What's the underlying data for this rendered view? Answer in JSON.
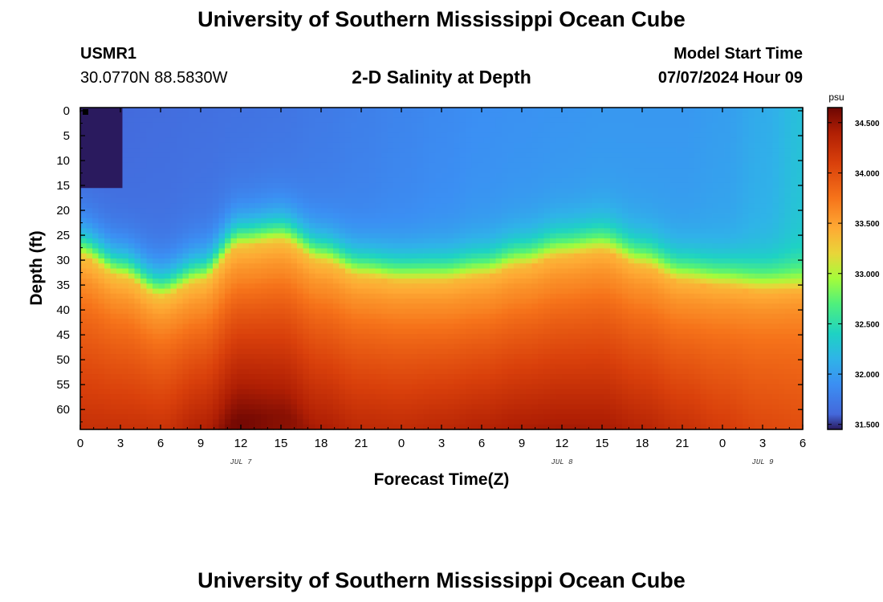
{
  "header": {
    "title": "University of Southern Mississippi Ocean Cube",
    "station_id": "USMR1",
    "station_coords": "30.0770N  88.5830W",
    "chart_heading": "2-D Salinity at Depth",
    "model_label": "Model Start Time",
    "model_time": "07/07/2024 Hour 09"
  },
  "footer": {
    "title": "University of Southern Mississippi Ocean Cube"
  },
  "chart_data": {
    "type": "heatmap",
    "title": "2-D Salinity at Depth",
    "xlabel": "Forecast Time(Z)",
    "ylabel": "Depth (ft)",
    "x_hours_range": [
      0,
      54
    ],
    "x_ticks_hours": [
      0,
      3,
      6,
      9,
      12,
      15,
      18,
      21,
      24,
      27,
      30,
      33,
      36,
      39,
      42,
      45,
      48,
      51,
      54
    ],
    "x_tick_labels": [
      "0",
      "3",
      "6",
      "9",
      "12",
      "15",
      "18",
      "21",
      "0",
      "3",
      "6",
      "9",
      "12",
      "15",
      "18",
      "21",
      "0",
      "3",
      "6"
    ],
    "day_labels": [
      {
        "text": "JUL 7",
        "hour": 12
      },
      {
        "text": "JUL 8",
        "hour": 36
      },
      {
        "text": "JUL 9",
        "hour": 51
      }
    ],
    "y_ticks_ft": [
      0,
      5,
      10,
      15,
      20,
      25,
      30,
      35,
      40,
      45,
      50,
      55,
      60
    ],
    "y_tick_labels": [
      "0",
      "5",
      "10",
      "15",
      "20",
      "25",
      "30",
      "35",
      "40",
      "45",
      "50",
      "55",
      "60"
    ],
    "depth_range_ft": [
      0,
      64
    ],
    "colorbar": {
      "unit": "psu",
      "range": [
        31.45,
        34.65
      ],
      "ticks": [
        31.5,
        32.0,
        32.5,
        33.0,
        33.5,
        34.0,
        34.5
      ],
      "tick_labels": [
        "31.500",
        "32.000",
        "32.500",
        "33.000",
        "33.500",
        "34.000",
        "34.500"
      ],
      "colors": [
        {
          "value": 31.45,
          "color": "#2a1a5e"
        },
        {
          "value": 31.6,
          "color": "#4468db"
        },
        {
          "value": 31.9,
          "color": "#3b8ff3"
        },
        {
          "value": 32.15,
          "color": "#2fb3e8"
        },
        {
          "value": 32.4,
          "color": "#1ed2c4"
        },
        {
          "value": 32.7,
          "color": "#4ff07c"
        },
        {
          "value": 32.95,
          "color": "#a4fc3b"
        },
        {
          "value": 33.2,
          "color": "#e9d539"
        },
        {
          "value": 33.45,
          "color": "#feaa34"
        },
        {
          "value": 33.75,
          "color": "#f6731a"
        },
        {
          "value": 34.1,
          "color": "#d9400b"
        },
        {
          "value": 34.4,
          "color": "#b01f04"
        },
        {
          "value": 34.65,
          "color": "#6d0603"
        }
      ]
    },
    "halocline_depth_ft": {
      "hours": [
        0,
        3,
        6,
        9,
        12,
        15,
        18,
        21,
        24,
        27,
        30,
        33,
        36,
        39,
        42,
        45,
        48,
        51,
        54
      ],
      "values": [
        30,
        34,
        38,
        35,
        28,
        27,
        31,
        34,
        35,
        35,
        34,
        32,
        30,
        29,
        32,
        35,
        36,
        37,
        37
      ]
    },
    "surface_salinity_psu": {
      "hours": [
        0,
        3,
        6,
        9,
        12,
        15,
        18,
        21,
        24,
        27,
        30,
        33,
        36,
        39,
        42,
        45,
        48,
        51,
        54
      ],
      "values": [
        31.62,
        31.62,
        31.64,
        31.66,
        31.68,
        31.7,
        31.74,
        31.78,
        31.82,
        31.86,
        31.9,
        31.92,
        31.94,
        31.96,
        31.96,
        31.96,
        32.0,
        32.1,
        32.25
      ]
    },
    "bottom_salinity_psu": {
      "hours": [
        0,
        3,
        6,
        9,
        12,
        15,
        18,
        21,
        24,
        27,
        30,
        33,
        36,
        39,
        42,
        45,
        48,
        51,
        54
      ],
      "values": [
        34.25,
        34.32,
        34.4,
        34.52,
        34.62,
        34.55,
        34.45,
        34.4,
        34.4,
        34.45,
        34.48,
        34.48,
        34.45,
        34.42,
        34.4,
        34.35,
        34.25,
        34.15,
        34.1
      ]
    },
    "fresh_patch": {
      "hours": [
        0,
        3.2
      ],
      "depth_ft": [
        0,
        16
      ],
      "value_psu": 31.45
    }
  }
}
